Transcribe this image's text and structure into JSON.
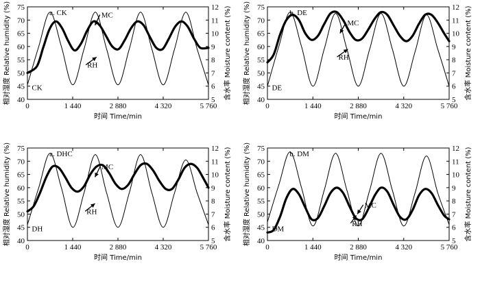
{
  "chart_data": [
    {
      "type": "line",
      "panel_label": "a. CK",
      "treatment_label": "CK",
      "xlabel": "时间 Time/min",
      "ylabel_left": "相对湿度 Relative humidity (%)",
      "ylabel_right": "含水率 Moisture content (%)",
      "xlim": [
        0,
        5760
      ],
      "x_ticks": [
        0,
        1440,
        2880,
        4320,
        5760
      ],
      "x_tick_labels": [
        "0",
        "1 440",
        "2 880",
        "4 320",
        "5 760"
      ],
      "ylim_left": [
        40,
        75
      ],
      "y_ticks_left": [
        40,
        45,
        50,
        55,
        60,
        65,
        70,
        75
      ],
      "ylim_right": [
        5,
        12
      ],
      "y_ticks_right": [
        5,
        6,
        7,
        8,
        9,
        10,
        11,
        12
      ],
      "annotations": [
        "MC",
        "RH"
      ],
      "series": [
        {
          "name": "RH",
          "axis": "left",
          "stroke": "thin",
          "x": [
            0,
            360,
            720,
            1080,
            1440,
            1800,
            2160,
            2520,
            2880,
            3240,
            3600,
            3960,
            4320,
            4680,
            5040,
            5400,
            5760
          ],
          "y": [
            45.5,
            60,
            73,
            60,
            45.5,
            59,
            73,
            59,
            45.5,
            59,
            73,
            59,
            45.5,
            59,
            73,
            59,
            45.5
          ]
        },
        {
          "name": "MC",
          "axis": "right",
          "stroke": "thick",
          "x": [
            0,
            300,
            500,
            700,
            900,
            1100,
            1300,
            1500,
            1700,
            1900,
            2100,
            2300,
            2500,
            2700,
            2900,
            3100,
            3300,
            3500,
            3700,
            3900,
            4100,
            4300,
            4500,
            4700,
            4900,
            5100,
            5300,
            5500,
            5760
          ],
          "y": [
            7.0,
            7.5,
            8.9,
            10.3,
            10.9,
            10.4,
            9.4,
            8.7,
            9.2,
            10.2,
            10.9,
            10.6,
            9.8,
            9.0,
            8.8,
            9.5,
            10.4,
            10.9,
            10.6,
            9.7,
            8.9,
            8.8,
            9.6,
            10.5,
            10.9,
            10.5,
            9.6,
            8.9,
            8.9
          ]
        }
      ]
    },
    {
      "type": "line",
      "panel_label": "b. DE",
      "treatment_label": "DE",
      "xlabel": "时间 Time/min",
      "ylabel_left": "相对湿度 Relative humidity (%)",
      "ylabel_right": "含水率 Moisture content (%)",
      "xlim": [
        0,
        5760
      ],
      "x_ticks": [
        0,
        1440,
        2880,
        4320,
        5760
      ],
      "x_tick_labels": [
        "0",
        "1 440",
        "2 880",
        "4 320",
        "5 760"
      ],
      "ylim_left": [
        40,
        75
      ],
      "y_ticks_left": [
        40,
        45,
        50,
        55,
        60,
        65,
        70,
        75
      ],
      "ylim_right": [
        5,
        12
      ],
      "y_ticks_right": [
        5,
        6,
        7,
        8,
        9,
        10,
        11,
        12
      ],
      "annotations": [
        "MC",
        "RH"
      ],
      "series": [
        {
          "name": "RH",
          "axis": "left",
          "stroke": "thin",
          "x": [
            0,
            360,
            720,
            1080,
            1440,
            1800,
            2160,
            2520,
            2880,
            3240,
            3600,
            3960,
            4320,
            4680,
            5040,
            5400,
            5760
          ],
          "y": [
            45,
            60,
            73,
            60,
            45,
            59,
            72.5,
            59,
            45,
            59,
            72.5,
            59,
            45,
            58,
            72,
            59,
            45
          ]
        },
        {
          "name": "MC",
          "axis": "right",
          "stroke": "thick",
          "x": [
            0,
            200,
            400,
            600,
            800,
            1000,
            1200,
            1400,
            1600,
            1800,
            2000,
            2200,
            2400,
            2600,
            2800,
            3000,
            3200,
            3400,
            3600,
            3800,
            4000,
            4200,
            4400,
            4600,
            4800,
            5000,
            5200,
            5400,
            5600,
            5760
          ],
          "y": [
            7.8,
            8.4,
            9.9,
            11.0,
            11.4,
            11.0,
            10.0,
            9.5,
            9.8,
            10.7,
            11.5,
            11.6,
            11.0,
            10.1,
            9.5,
            9.6,
            10.3,
            11.1,
            11.6,
            11.4,
            10.6,
            9.8,
            9.4,
            9.8,
            10.7,
            11.4,
            11.4,
            10.8,
            10.0,
            9.4
          ]
        }
      ]
    },
    {
      "type": "line",
      "panel_label": "a. DHC",
      "treatment_label": "DH",
      "xlabel": "时间 Time/min",
      "ylabel_left": "相对湿度 Relative humidity (%)",
      "ylabel_right": "含水率 Moisture content (%)",
      "xlim": [
        0,
        5760
      ],
      "x_ticks": [
        0,
        1440,
        2880,
        4320,
        5760
      ],
      "x_tick_labels": [
        "0",
        "1 440",
        "2 880",
        "4 320",
        "5 760"
      ],
      "ylim_left": [
        40,
        75
      ],
      "y_ticks_left": [
        40,
        45,
        50,
        55,
        60,
        65,
        70,
        75
      ],
      "ylim_right": [
        5,
        12
      ],
      "y_ticks_right": [
        5,
        6,
        7,
        8,
        9,
        10,
        11,
        12
      ],
      "annotations": [
        "MC",
        "RH"
      ],
      "series": [
        {
          "name": "RH",
          "axis": "left",
          "stroke": "thin",
          "x": [
            0,
            360,
            720,
            1080,
            1440,
            1800,
            2160,
            2520,
            2880,
            3240,
            3600,
            3960,
            4320,
            4680,
            5040,
            5400,
            5760
          ],
          "y": [
            46,
            60,
            73,
            60,
            45,
            58,
            72.5,
            58,
            45,
            58,
            72.5,
            58,
            45,
            58,
            70.5,
            58,
            46
          ]
        },
        {
          "name": "MC",
          "axis": "right",
          "stroke": "thick",
          "x": [
            0,
            200,
            400,
            600,
            800,
            1000,
            1200,
            1400,
            1600,
            1800,
            2000,
            2200,
            2400,
            2600,
            2800,
            3000,
            3200,
            3400,
            3600,
            3800,
            4000,
            4200,
            4400,
            4600,
            4800,
            5000,
            5200,
            5400,
            5600,
            5760
          ],
          "y": [
            7.2,
            7.6,
            8.6,
            9.8,
            10.6,
            10.5,
            9.8,
            9.0,
            8.7,
            9.1,
            10.0,
            10.6,
            10.7,
            10.1,
            9.3,
            8.9,
            9.2,
            10.0,
            10.7,
            10.8,
            10.3,
            9.5,
            8.9,
            8.9,
            9.6,
            10.5,
            10.8,
            10.5,
            9.7,
            9.0
          ]
        }
      ]
    },
    {
      "type": "line",
      "panel_label": "b. DM",
      "treatment_label": "DM",
      "xlabel": "时间 Time/min",
      "ylabel_left": "相对湿度 Relative humidity (%)",
      "ylabel_right": "含水率 Moisture content (%)",
      "xlim": [
        0,
        5760
      ],
      "x_ticks": [
        0,
        1440,
        2880,
        4320,
        5760
      ],
      "x_tick_labels": [
        "0",
        "1 440",
        "2 880",
        "4 320",
        "5 760"
      ],
      "ylim_left": [
        40,
        75
      ],
      "y_ticks_left": [
        40,
        45,
        50,
        55,
        60,
        65,
        70,
        75
      ],
      "ylim_right": [
        5,
        12
      ],
      "y_ticks_right": [
        5,
        6,
        7,
        8,
        9,
        10,
        11,
        12
      ],
      "annotations": [
        "MC",
        "RH"
      ],
      "series": [
        {
          "name": "RH",
          "axis": "left",
          "stroke": "thin",
          "x": [
            0,
            360,
            720,
            1080,
            1440,
            1800,
            2160,
            2520,
            2880,
            3240,
            3600,
            3960,
            4320,
            4680,
            5040,
            5400,
            5760
          ],
          "y": [
            47,
            61,
            73.5,
            60,
            45.5,
            59,
            73,
            59,
            45.5,
            59,
            73,
            59,
            45.5,
            58,
            72,
            58,
            46
          ]
        },
        {
          "name": "MC",
          "axis": "right",
          "stroke": "thick",
          "x": [
            0,
            200,
            400,
            600,
            800,
            1000,
            1200,
            1400,
            1600,
            1800,
            2000,
            2200,
            2400,
            2600,
            2800,
            3000,
            3200,
            3400,
            3600,
            3800,
            4000,
            4200,
            4400,
            4600,
            4800,
            5000,
            5200,
            5400,
            5600,
            5760
          ],
          "y": [
            5.6,
            5.8,
            6.8,
            8.2,
            8.9,
            8.5,
            7.5,
            6.6,
            6.7,
            7.6,
            8.6,
            9.0,
            8.6,
            7.6,
            6.7,
            6.6,
            7.4,
            8.4,
            9.0,
            8.7,
            7.7,
            6.8,
            6.6,
            7.3,
            8.4,
            8.9,
            8.6,
            7.7,
            6.9,
            6.6
          ]
        }
      ]
    }
  ]
}
